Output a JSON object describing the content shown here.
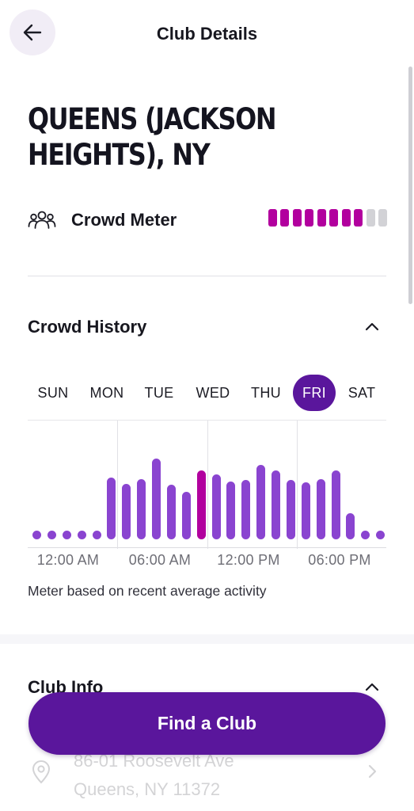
{
  "header": {
    "title": "Club Details"
  },
  "club": {
    "name": "QUEENS (JACKSON HEIGHTS), NY"
  },
  "crowd_meter": {
    "label": "Crowd Meter",
    "segments_total": 10,
    "segments_filled": 8
  },
  "crowd_history": {
    "title": "Crowd History",
    "days": [
      "SUN",
      "MON",
      "TUE",
      "WED",
      "THU",
      "FRI",
      "SAT"
    ],
    "selected_day": "FRI",
    "note": "Meter based on recent average activity"
  },
  "chart_data": {
    "type": "bar",
    "x_tick_labels": [
      "12:00 AM",
      "06:00 AM",
      "12:00 PM",
      "06:00 PM"
    ],
    "values": [
      7,
      7,
      7,
      7,
      7,
      52,
      47,
      51,
      68,
      46,
      40,
      58,
      55,
      49,
      50,
      63,
      58,
      50,
      48,
      51,
      58,
      22,
      7,
      7
    ],
    "highlighted_index": 11,
    "ylim": [
      0,
      100
    ],
    "grid": "vertical separators at 6-hour intervals",
    "colors": {
      "bar": "#8a44d0",
      "current_bar": "#b2009e"
    }
  },
  "club_info": {
    "title": "Club Info",
    "address_line1": "86-01 Roosevelt Ave",
    "address_line2": "Queens, NY 11372"
  },
  "cta": {
    "label": "Find a Club"
  },
  "colors": {
    "primary": "#5a169c",
    "meter_on": "#b2009e",
    "meter_off": "#d2d2d6"
  }
}
